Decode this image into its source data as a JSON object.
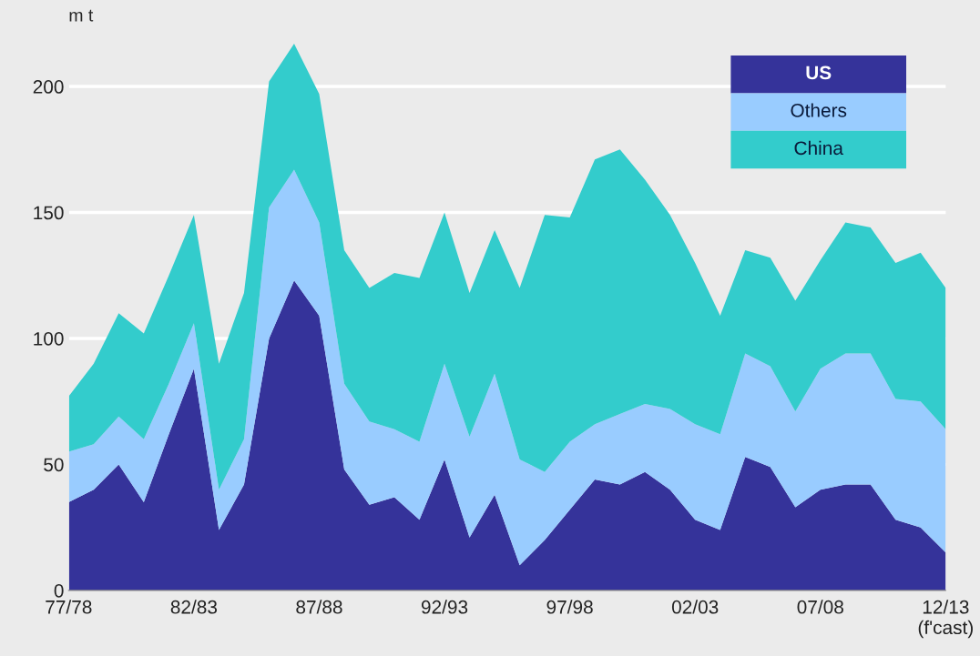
{
  "chart_data": {
    "type": "area",
    "stacked": true,
    "ylabel": "m t",
    "categories": [
      "77/78",
      null,
      null,
      null,
      null,
      "82/83",
      null,
      null,
      null,
      null,
      "87/88",
      null,
      null,
      null,
      null,
      "92/93",
      null,
      null,
      null,
      null,
      "97/98",
      null,
      null,
      null,
      null,
      "02/03",
      null,
      null,
      null,
      null,
      "07/08",
      null,
      null,
      null,
      null,
      "12/13\n(f'cast)"
    ],
    "series": [
      {
        "name": "US",
        "color": "#35339a",
        "values": [
          35,
          40,
          50,
          35,
          62,
          88,
          24,
          42,
          100,
          123,
          109,
          48,
          34,
          37,
          28,
          52,
          21,
          38,
          10,
          20,
          32,
          44,
          42,
          47,
          40,
          28,
          24,
          53,
          49,
          33,
          40,
          42,
          42,
          28,
          25,
          15
        ]
      },
      {
        "name": "Others",
        "color": "#99ccff",
        "values": [
          20,
          18,
          19,
          25,
          20,
          18,
          16,
          18,
          52,
          44,
          37,
          34,
          33,
          27,
          31,
          38,
          40,
          48,
          42,
          27,
          27,
          22,
          28,
          27,
          32,
          38,
          38,
          41,
          40,
          38,
          48,
          52,
          52,
          48,
          50,
          49
        ]
      },
      {
        "name": "China",
        "color": "#33cccc",
        "values": [
          22,
          32,
          41,
          42,
          43,
          43,
          50,
          58,
          50,
          50,
          51,
          53,
          53,
          62,
          65,
          60,
          57,
          57,
          68,
          102,
          89,
          105,
          105,
          89,
          77,
          64,
          47,
          41,
          43,
          44,
          43,
          52,
          50,
          54,
          59,
          56
        ]
      }
    ],
    "ylim": [
      0,
      220
    ],
    "yticks": [
      0,
      50,
      100,
      150,
      200
    ],
    "grid": "y",
    "legend": "top right"
  }
}
